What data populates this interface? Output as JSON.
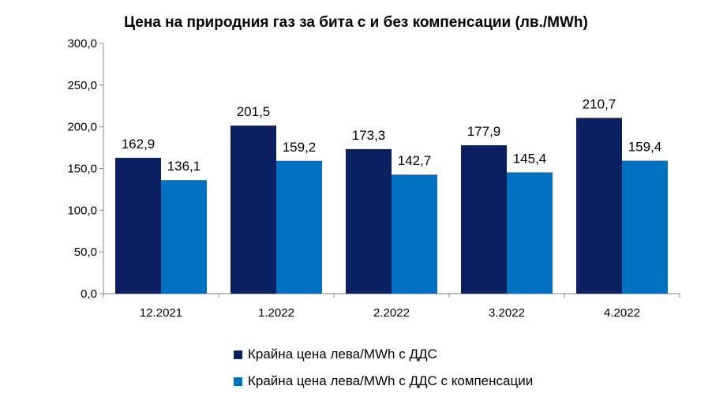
{
  "chart_data": {
    "type": "bar",
    "title": "Цена на природния газ за бита с и без компенсации (лв./MWh)",
    "categories": [
      "12.2021",
      "1.2022",
      "2.2022",
      "3.2022",
      "4.2022"
    ],
    "series": [
      {
        "name": "Крайна цена лева/MWh с ДДС",
        "color": "#0a2060",
        "values": [
          162.9,
          201.5,
          173.3,
          177.9,
          210.7
        ],
        "labels": [
          "162,9",
          "201,5",
          "173,3",
          "177,9",
          "210,7"
        ]
      },
      {
        "name": "Крайна цена лева/MWh с ДДС с компенсации",
        "color": "#0070c0",
        "values": [
          136.1,
          159.2,
          142.7,
          145.4,
          159.4
        ],
        "labels": [
          "136,1",
          "159,2",
          "142,7",
          "145,4",
          "159,4"
        ]
      }
    ],
    "ylim": [
      0,
      300
    ],
    "yticks": [
      0,
      50,
      100,
      150,
      200,
      250,
      300
    ],
    "ytick_labels": [
      "0,0",
      "50,0",
      "100,0",
      "150,0",
      "200,0",
      "250,0",
      "300,0"
    ],
    "grid": false,
    "legend_position": "bottom"
  }
}
